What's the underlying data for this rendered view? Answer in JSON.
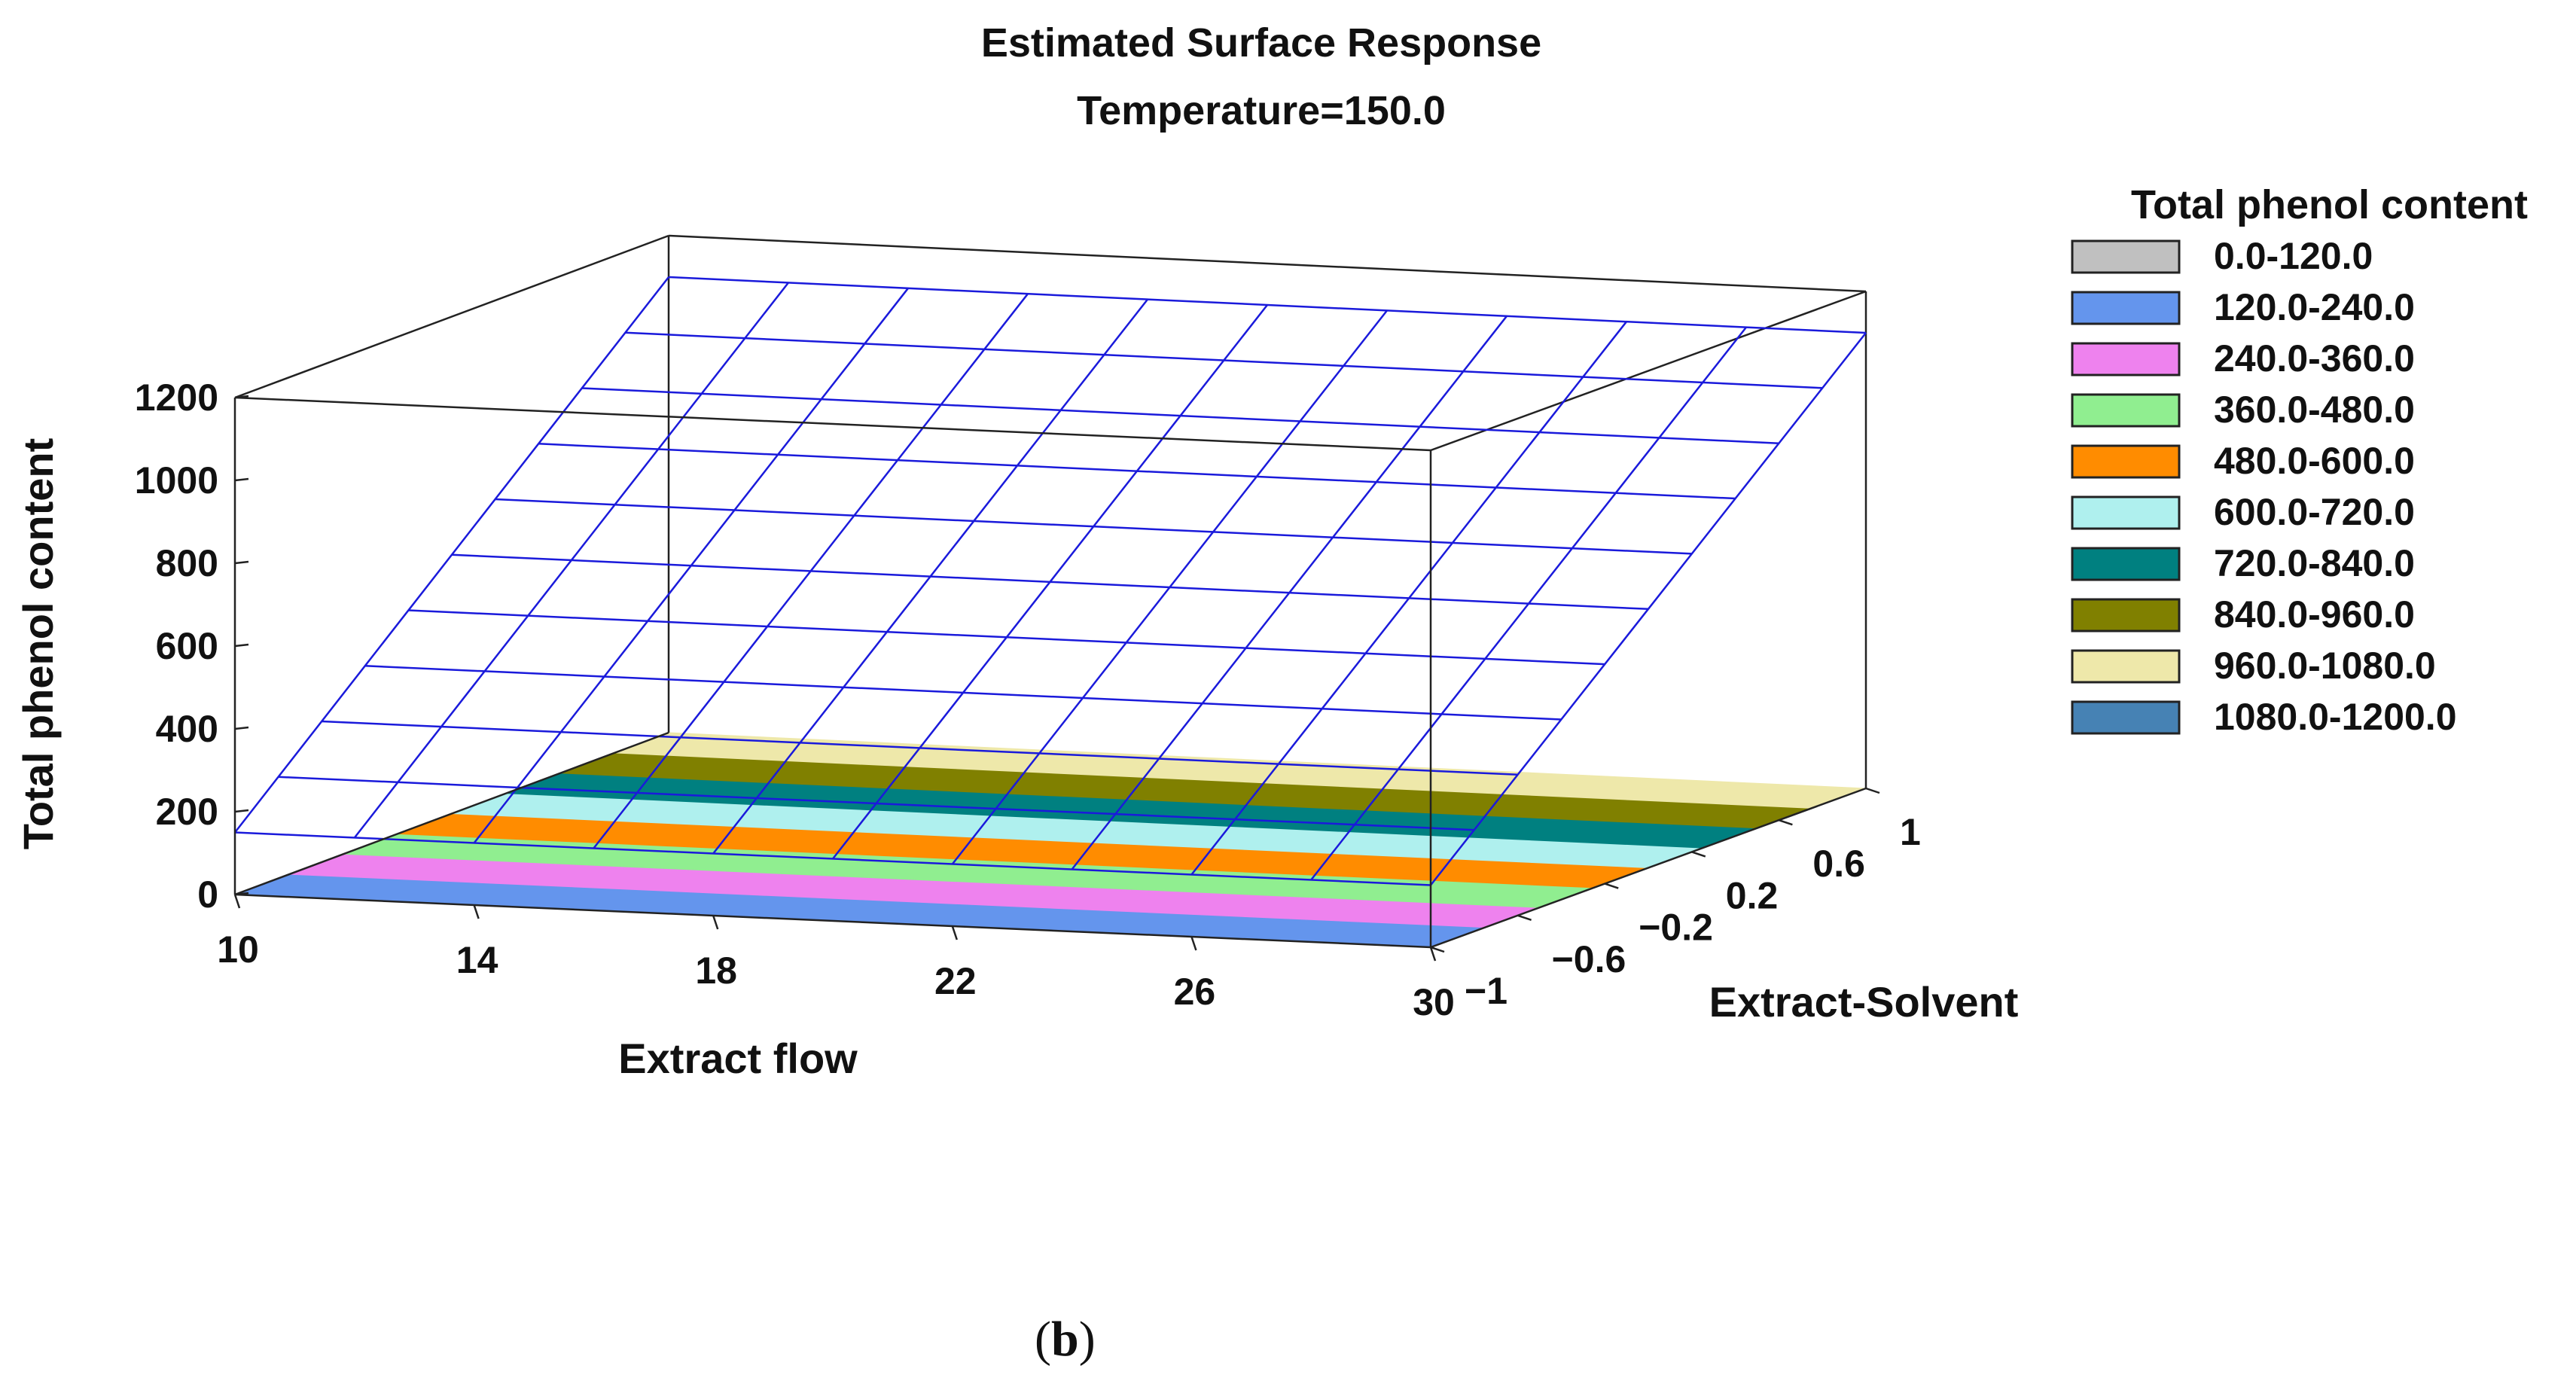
{
  "chart_data": {
    "type": "surface3d",
    "title": "Estimated Surface Response",
    "subtitle": "Temperature=150.0",
    "xlabel": "Extract flow",
    "ylabel": "Extract-Solvent",
    "zlabel": "Total phenol content",
    "x_ticks": [
      "10",
      "14",
      "18",
      "22",
      "26",
      "30"
    ],
    "y_ticks": [
      "-1",
      "-0.6",
      "-0.2",
      "0.2",
      "0.6",
      "1"
    ],
    "z_ticks": [
      "0",
      "200",
      "400",
      "600",
      "800",
      "1000",
      "1200"
    ],
    "xlim": [
      10,
      30
    ],
    "ylim": [
      -1,
      1
    ],
    "zlim": [
      0,
      1200
    ],
    "surface": {
      "x": [
        10,
        30
      ],
      "y": [
        -1,
        1
      ],
      "z_at_y_min": 150,
      "z_at_y_max": 1100,
      "mesh_color": "#1a1adb"
    },
    "legend": {
      "title": "Total phenol content",
      "position": "right",
      "entries": [
        {
          "label": "0.0-120.0",
          "color": "#c0c0c0"
        },
        {
          "label": "120.0-240.0",
          "color": "#6495ed"
        },
        {
          "label": "240.0-360.0",
          "color": "#ee82ee"
        },
        {
          "label": "360.0-480.0",
          "color": "#90ee90"
        },
        {
          "label": "480.0-600.0",
          "color": "#ff8c00"
        },
        {
          "label": "600.0-720.0",
          "color": "#aff0ee"
        },
        {
          "label": "720.0-840.0",
          "color": "#008080"
        },
        {
          "label": "840.0-960.0",
          "color": "#808000"
        },
        {
          "label": "960.0-1080.0",
          "color": "#eee8aa"
        },
        {
          "label": "1080.0-1200.0",
          "color": "#4682b4"
        }
      ]
    },
    "contour_bands_on_floor": [
      "120.0-240.0",
      "240.0-360.0",
      "360.0-480.0",
      "480.0-600.0",
      "600.0-720.0",
      "720.0-840.0",
      "840.0-960.0",
      "960.0-1080.0"
    ]
  },
  "caption": {
    "open": "(",
    "letter": "b",
    "close": ")"
  }
}
